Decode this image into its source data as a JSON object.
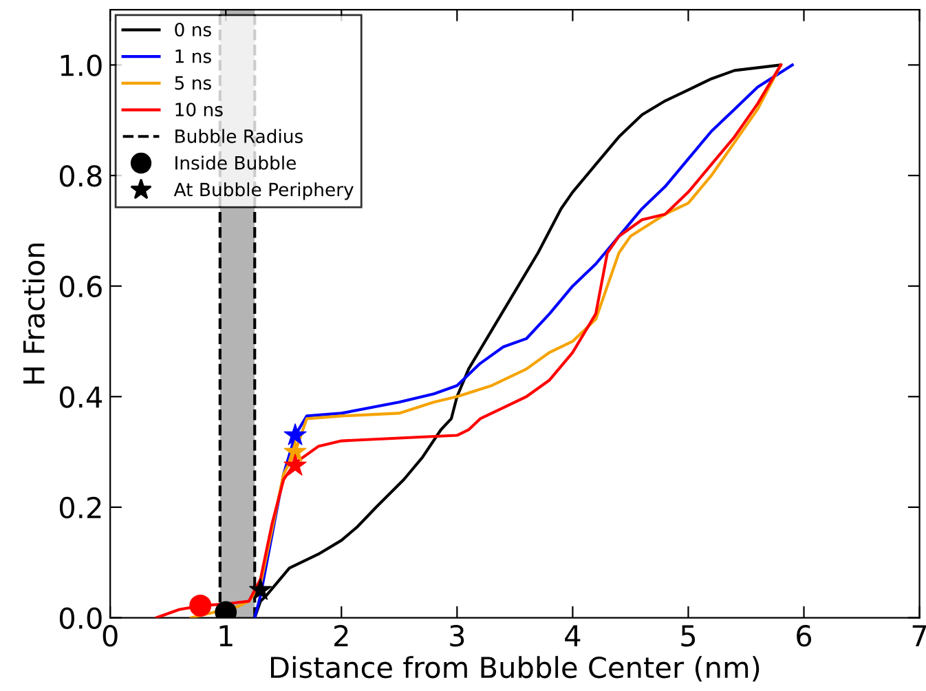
{
  "chart_data": {
    "type": "line",
    "xlabel": "Distance from Bubble Center (nm)",
    "ylabel": "H Fraction",
    "xlim": [
      0,
      7
    ],
    "ylim": [
      0,
      1.1
    ],
    "xticks": [
      0,
      1,
      2,
      3,
      4,
      5,
      6,
      7
    ],
    "yticks": [
      {
        "value": 0,
        "label": "0.0"
      },
      {
        "value": 0.2,
        "label": "0.2"
      },
      {
        "value": 0.4,
        "label": "0.4"
      },
      {
        "value": 0.6,
        "label": "0.6"
      },
      {
        "value": 0.8,
        "label": "0.8"
      },
      {
        "value": 1.0,
        "label": "1.0"
      }
    ],
    "grid": false,
    "legend": "top left",
    "line_style": "solid",
    "marker": "none",
    "series": [
      {
        "name": "0 ns",
        "color": "#000000",
        "x": [
          1.25,
          1.3,
          1.35,
          1.55,
          1.8,
          2.0,
          2.14,
          2.3,
          2.54,
          2.7,
          2.86,
          2.95,
          3.0,
          3.1,
          3.3,
          3.5,
          3.7,
          3.9,
          4.0,
          4.2,
          4.4,
          4.6,
          4.8,
          5.0,
          5.2,
          5.4,
          5.6,
          5.8
        ],
        "values": [
          0,
          0.03,
          0.04,
          0.09,
          0.115,
          0.14,
          0.165,
          0.2,
          0.25,
          0.29,
          0.34,
          0.36,
          0.4,
          0.45,
          0.52,
          0.59,
          0.66,
          0.74,
          0.77,
          0.82,
          0.87,
          0.91,
          0.935,
          0.955,
          0.975,
          0.99,
          0.995,
          1.0
        ]
      },
      {
        "name": "1 ns",
        "color": "#0000ff",
        "x": [
          1.25,
          1.3,
          1.4,
          1.5,
          1.6,
          1.7,
          2.0,
          2.5,
          2.8,
          3.0,
          3.2,
          3.4,
          3.6,
          3.8,
          4.0,
          4.2,
          4.4,
          4.6,
          4.8,
          5.0,
          5.2,
          5.4,
          5.6,
          5.75,
          5.9
        ],
        "values": [
          0,
          0.04,
          0.15,
          0.26,
          0.33,
          0.365,
          0.37,
          0.39,
          0.405,
          0.42,
          0.46,
          0.49,
          0.505,
          0.55,
          0.6,
          0.64,
          0.69,
          0.74,
          0.78,
          0.83,
          0.88,
          0.92,
          0.96,
          0.98,
          1.0
        ]
      },
      {
        "name": "5 ns",
        "color": "#f5a300",
        "x": [
          0.7,
          0.9,
          1.1,
          1.2,
          1.3,
          1.4,
          1.5,
          1.6,
          1.7,
          2.0,
          2.5,
          2.8,
          3.0,
          3.3,
          3.6,
          3.8,
          4.0,
          4.2,
          4.3,
          4.4,
          4.5,
          4.8,
          5.0,
          5.2,
          5.4,
          5.6,
          5.8
        ],
        "values": [
          0,
          0.01,
          0.02,
          0.03,
          0.06,
          0.16,
          0.26,
          0.3,
          0.36,
          0.365,
          0.37,
          0.39,
          0.4,
          0.42,
          0.45,
          0.48,
          0.5,
          0.54,
          0.6,
          0.66,
          0.69,
          0.73,
          0.75,
          0.8,
          0.86,
          0.92,
          1.0
        ]
      },
      {
        "name": "10 ns",
        "color": "#ff0000",
        "x": [
          0.4,
          0.6,
          0.8,
          1.0,
          1.2,
          1.3,
          1.4,
          1.5,
          1.6,
          1.8,
          2.0,
          2.5,
          3.0,
          3.1,
          3.2,
          3.4,
          3.6,
          3.8,
          4.0,
          4.2,
          4.3,
          4.4,
          4.6,
          4.8,
          5.0,
          5.2,
          5.4,
          5.6,
          5.8
        ],
        "values": [
          0,
          0.015,
          0.022,
          0.025,
          0.03,
          0.07,
          0.17,
          0.25,
          0.28,
          0.31,
          0.32,
          0.325,
          0.33,
          0.34,
          0.36,
          0.38,
          0.4,
          0.43,
          0.48,
          0.55,
          0.66,
          0.69,
          0.72,
          0.73,
          0.77,
          0.82,
          0.87,
          0.93,
          1.0
        ]
      },
      {
        "name": "Inside Bubble",
        "type": "scatter",
        "marker": "circle",
        "color": "#000000",
        "colors": [
          "#ff0000",
          "#000000"
        ],
        "x": [
          0.78,
          1.0
        ],
        "values": [
          0.022,
          0.01
        ]
      },
      {
        "name": "At Bubble Periphery",
        "type": "scatter",
        "marker": "star",
        "color": "#000000",
        "colors": [
          "#000000",
          "#0000ff",
          "#f5a300",
          "#ff0000"
        ],
        "x": [
          1.3,
          1.6,
          1.6,
          1.6
        ],
        "values": [
          0.05,
          0.33,
          0.3,
          0.275
        ]
      }
    ],
    "bands": [
      {
        "axis": "x",
        "from": 0.95,
        "to": 1.25,
        "color": "#b4b4b4"
      }
    ],
    "ref_lines": [
      {
        "axis": "x",
        "value": 0.95,
        "label": "Bubble Radius",
        "color": "#000000",
        "line_style": "dashed"
      },
      {
        "axis": "x",
        "value": 1.25,
        "color": "#000000",
        "line_style": "dashed"
      }
    ]
  }
}
